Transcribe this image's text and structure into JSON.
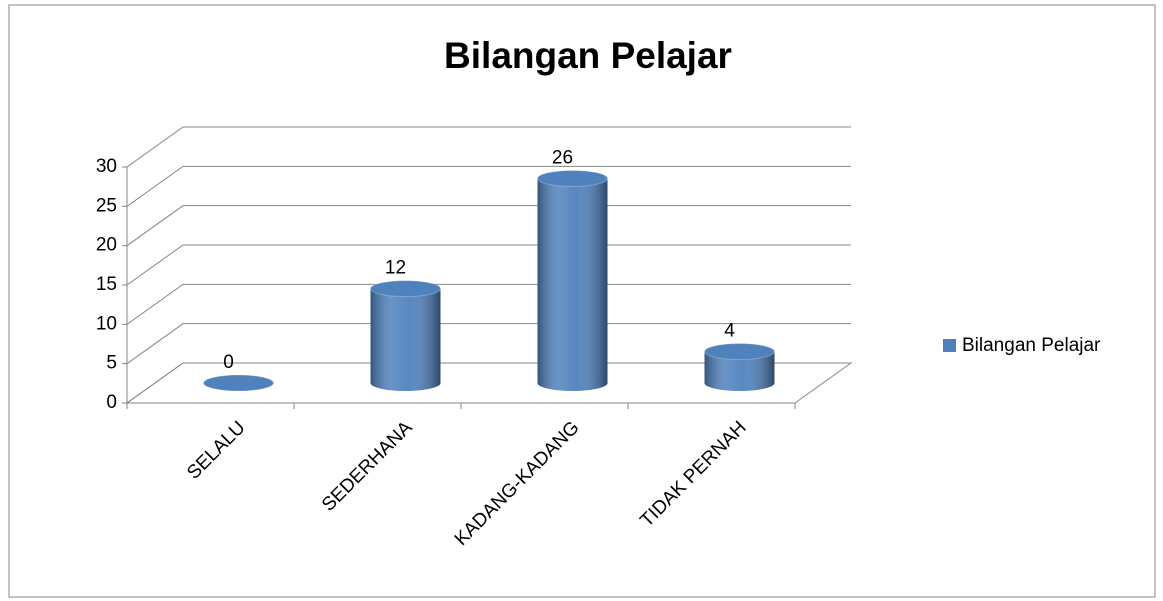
{
  "chart_data": {
    "type": "bar3d",
    "title": "Bilangan Pelajar",
    "categories": [
      "SELALU",
      "SEDERHANA",
      "KADANG-KADANG",
      "TIDAK PERNAH"
    ],
    "series": [
      {
        "name": "Bilangan Pelajar",
        "color": "#4f81bd",
        "values": [
          0,
          12,
          26,
          4
        ]
      }
    ],
    "ylim": [
      0,
      30
    ],
    "yticks": [
      0,
      5,
      10,
      15,
      20,
      25,
      30
    ],
    "grid": true,
    "legend": "right"
  }
}
